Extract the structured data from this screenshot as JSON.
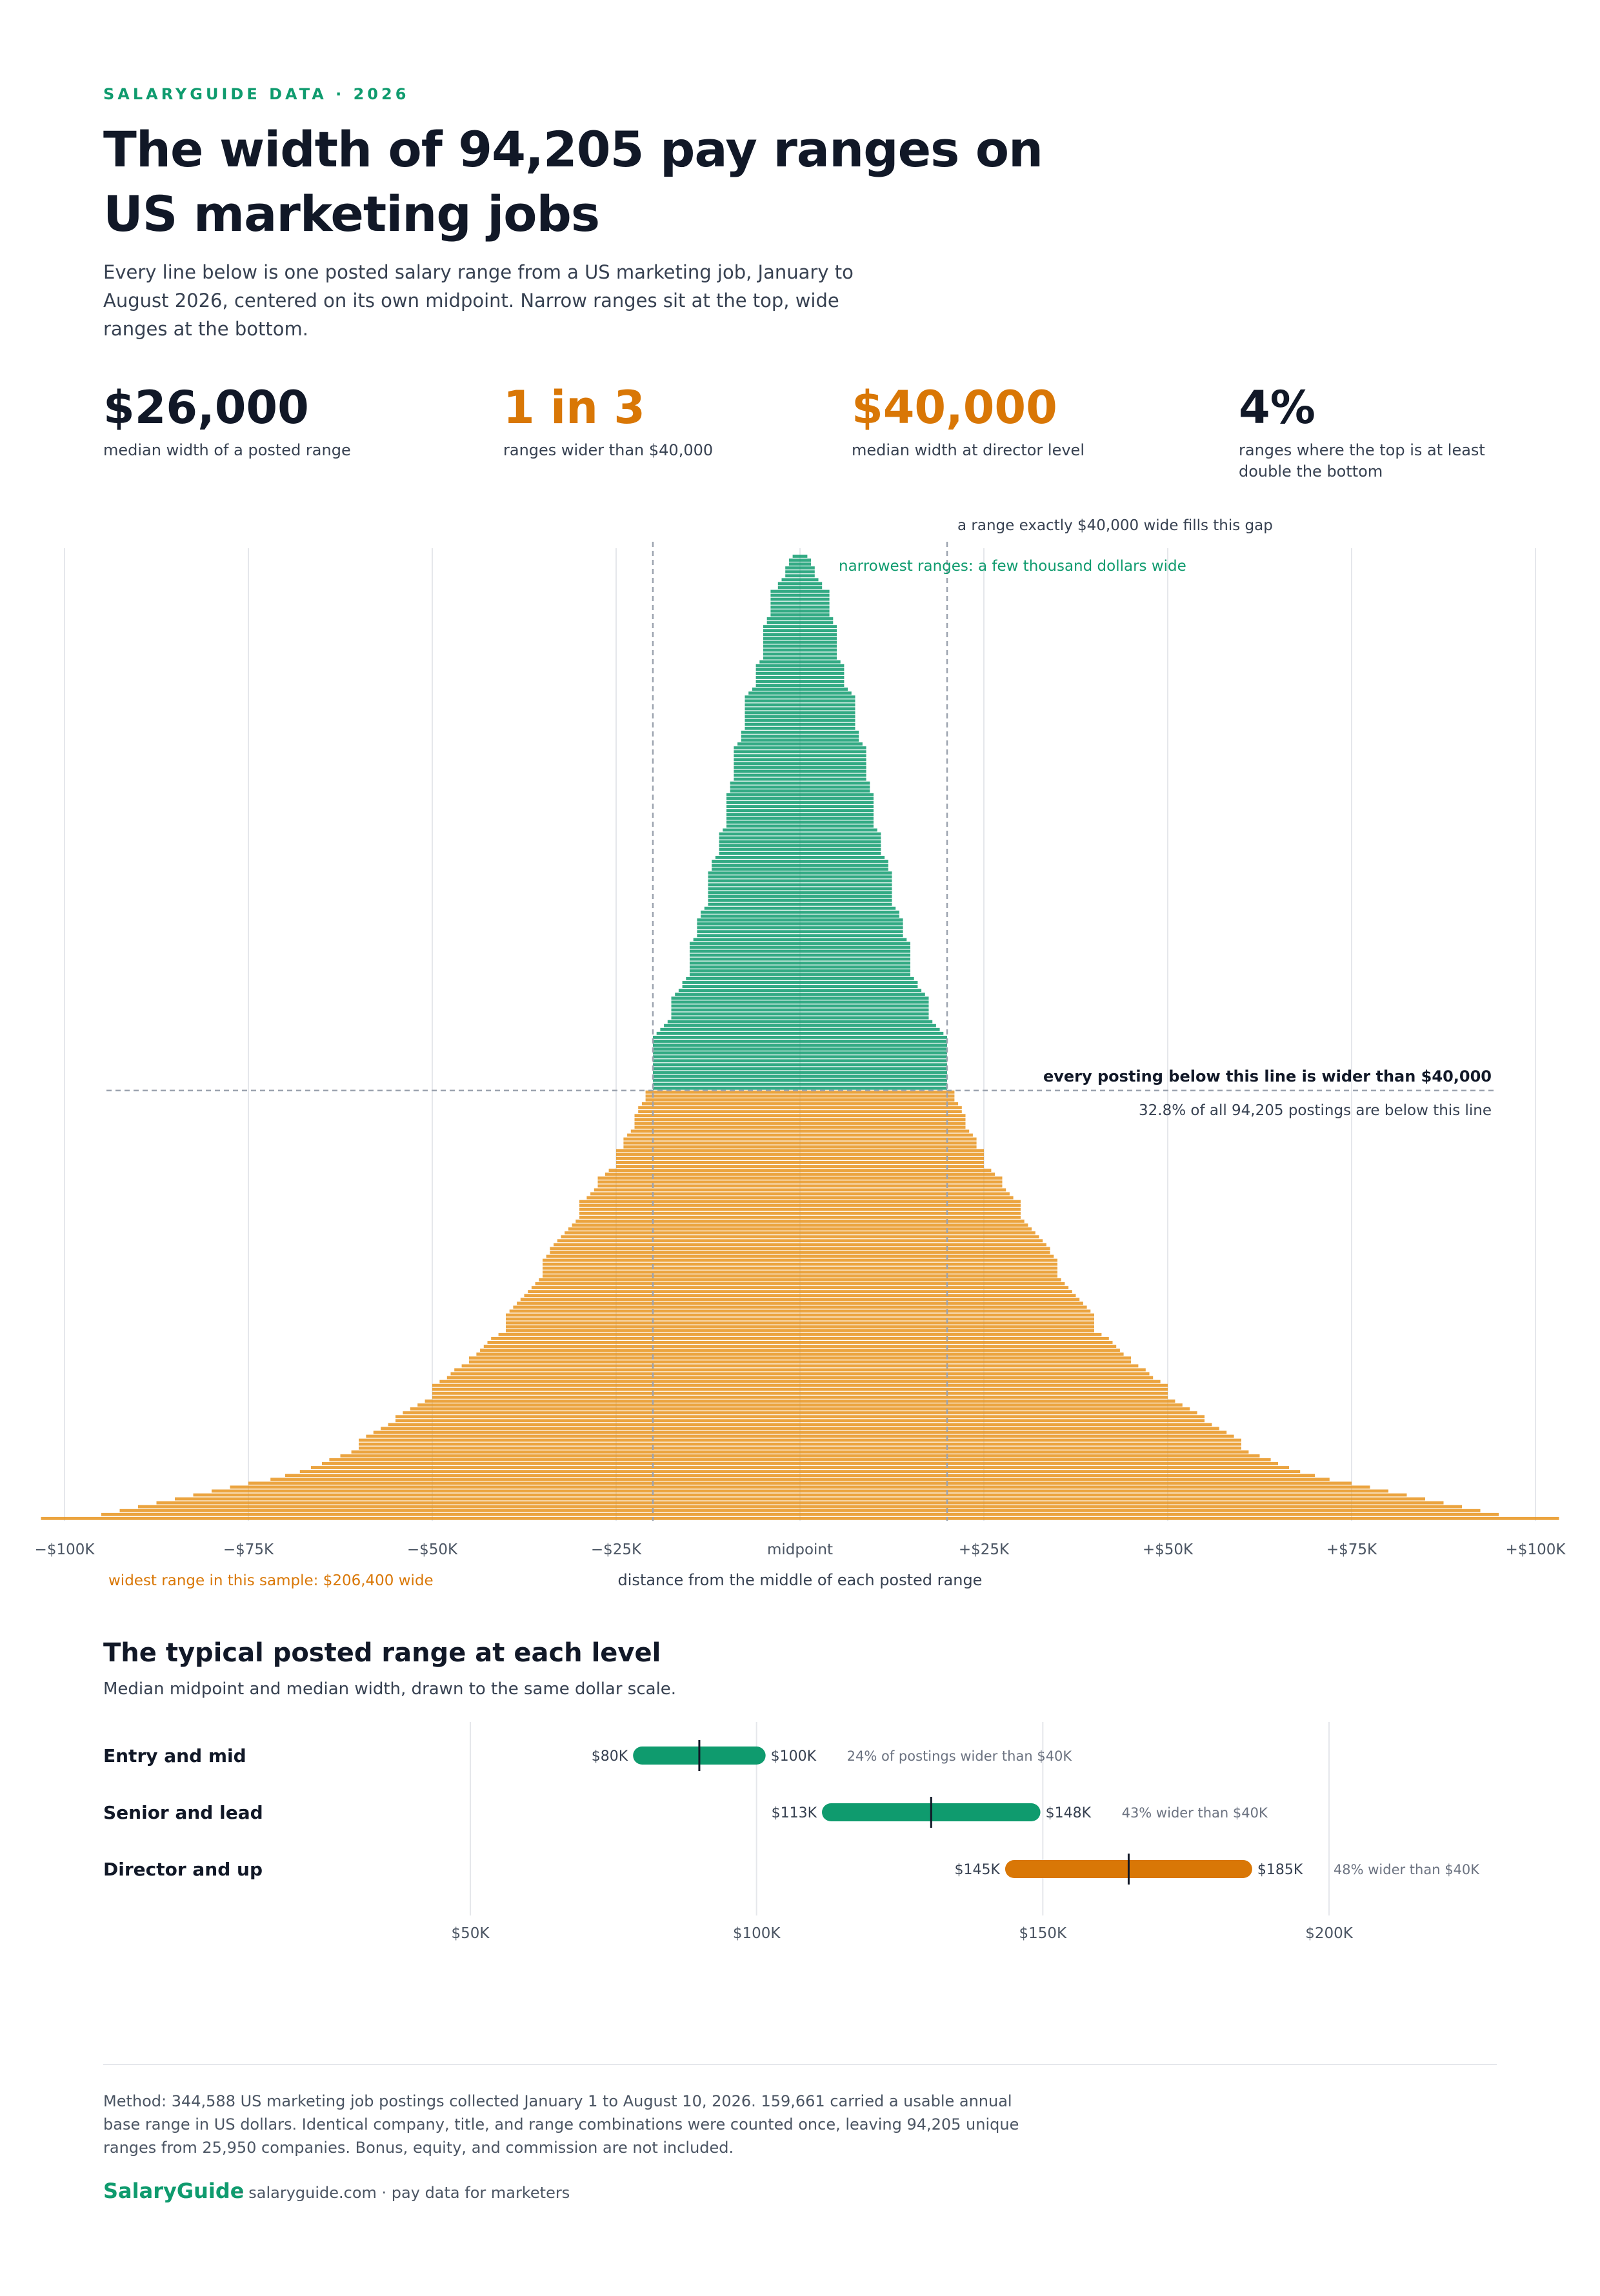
{
  "header": {
    "eyebrow": "SALARYGUIDE DATA · 2026",
    "title": "The width of 94,205 pay ranges on US marketing jobs",
    "subtitle": "Every line below is one posted salary range from a US marketing job, January to August 2026, centered on its own midpoint. Narrow ranges sit at the top, wide ranges at the bottom."
  },
  "stats": [
    {
      "value": "$26,000",
      "label": "median width of a posted range",
      "color": "#111827"
    },
    {
      "value": "1 in 3",
      "label": "ranges wider than $40,000",
      "color": "#d97706"
    },
    {
      "value": "$40,000",
      "label": "median width at director level",
      "color": "#d97706"
    },
    {
      "value": "4%",
      "label": "ranges where the top is at least double the bottom",
      "color": "#111827"
    }
  ],
  "colors": {
    "narrow": "#0f9b6e",
    "wide": "#e8941f",
    "accent": "#d97706",
    "muted": "#6b7280",
    "grid": "#e5e7eb"
  },
  "chart_data": [
    {
      "type": "bar",
      "description_type": "centered range-width stack (each row a group of postings, bar length = range width, centered at 0)",
      "x_unit": "dollars from range midpoint",
      "xlim": [
        -100000,
        100000
      ],
      "x_ticks": [
        -100000,
        -75000,
        -50000,
        -25000,
        0,
        25000,
        50000,
        75000,
        100000
      ],
      "x_tick_labels": [
        "−$100K",
        "−$75K",
        "−$50K",
        "−$25K",
        "midpoint",
        "+$25K",
        "+$50K",
        "+$75K",
        "+$100K"
      ],
      "xlabel": "distance from the middle of each posted range",
      "threshold_width": 40000,
      "threshold_share": 0.328,
      "widths": [
        2000,
        3000,
        3000,
        4000,
        4000,
        4000,
        5000,
        6000,
        6000,
        8000,
        8000,
        8000,
        8000,
        8000,
        8000,
        8000,
        9000,
        9000,
        10000,
        10000,
        10000,
        10000,
        10000,
        10000,
        10000,
        10000,
        10000,
        11000,
        12000,
        12000,
        12000,
        12000,
        12000,
        12000,
        13000,
        14000,
        15000,
        15000,
        15000,
        15000,
        15000,
        15000,
        15000,
        15000,
        15000,
        16000,
        16000,
        16000,
        17000,
        18000,
        18000,
        18000,
        18000,
        18000,
        18000,
        18000,
        18000,
        18000,
        19000,
        19000,
        19000,
        20000,
        20000,
        20000,
        20000,
        20000,
        20000,
        20000,
        20000,
        20000,
        21000,
        22000,
        22000,
        22000,
        22000,
        22000,
        22000,
        23000,
        24000,
        24000,
        24000,
        25000,
        25000,
        25000,
        25000,
        25000,
        25000,
        25000,
        25000,
        25000,
        26000,
        27000,
        27000,
        28000,
        28000,
        28000,
        28000,
        28000,
        29000,
        30000,
        30000,
        30000,
        30000,
        30000,
        30000,
        30000,
        30000,
        30000,
        31000,
        32000,
        32000,
        33000,
        34000,
        35000,
        35000,
        35000,
        35000,
        35000,
        35000,
        36000,
        37000,
        38000,
        39000,
        40000,
        40000,
        40000,
        40000,
        40000,
        40000,
        40000,
        40000,
        40000,
        40000,
        40000,
        40000,
        40000,
        40000,
        42000,
        42000,
        42000,
        43000,
        44000,
        44000,
        45000,
        45000,
        45000,
        45000,
        46000,
        47000,
        48000,
        48000,
        48000,
        50000,
        50000,
        50000,
        50000,
        50000,
        52000,
        53000,
        55000,
        55000,
        55000,
        56000,
        57000,
        58000,
        60000,
        60000,
        60000,
        60000,
        60000,
        61000,
        62000,
        63000,
        64000,
        65000,
        66000,
        67000,
        68000,
        68000,
        69000,
        70000,
        70000,
        70000,
        70000,
        70000,
        71000,
        72000,
        73000,
        74000,
        75000,
        76000,
        77000,
        78000,
        79000,
        80000,
        80000,
        80000,
        80000,
        80000,
        82000,
        84000,
        85000,
        86000,
        87000,
        88000,
        90000,
        90000,
        92000,
        94000,
        95000,
        96000,
        98000,
        100000,
        100000,
        100000,
        100000,
        102000,
        104000,
        106000,
        108000,
        110000,
        110000,
        112000,
        114000,
        116000,
        118000,
        120000,
        120000,
        120000,
        122000,
        125000,
        128000,
        130000,
        133000,
        136000,
        140000,
        144000,
        150000,
        155000,
        160000,
        165000,
        170000,
        175000,
        180000,
        185000,
        190000,
        206400
      ],
      "annotations": {
        "gap": "a range exactly $40,000 wide fills this gap",
        "narrow": "narrowest ranges: a few thousand dollars wide",
        "threshold": "every posting below this line is wider than $40,000",
        "threshold_share": "32.8% of all 94,205 postings are below this line",
        "widest": "widest range in this sample: $206,400 wide"
      }
    },
    {
      "type": "range-bar",
      "title": "The typical posted range at each level",
      "subtitle": "Median midpoint and median width, drawn to the same dollar scale.",
      "x_unit": "USD annual base salary",
      "x_ticks": [
        50000,
        100000,
        150000,
        200000
      ],
      "x_tick_labels": [
        "$50K",
        "$100K",
        "$150K",
        "$200K"
      ],
      "rows": [
        {
          "name": "Entry and mid",
          "low": 80000,
          "high": 100000,
          "mid": 90000,
          "low_label": "$80K",
          "high_label": "$100K",
          "note": "24% of postings wider than $40K",
          "color": "#0f9b6e"
        },
        {
          "name": "Senior and lead",
          "low": 113000,
          "high": 148000,
          "mid": 130500,
          "low_label": "$113K",
          "high_label": "$148K",
          "note": "43% wider than $40K",
          "color": "#0f9b6e"
        },
        {
          "name": "Director and up",
          "low": 145000,
          "high": 185000,
          "mid": 165000,
          "low_label": "$145K",
          "high_label": "$185K",
          "note": "48% wider than $40K",
          "color": "#d97706"
        }
      ]
    }
  ],
  "footer": {
    "method": "Method: 344,588 US marketing job postings collected January 1 to August 10, 2026. 159,661 carried a usable annual base range in US dollars. Identical company, title, and range combinations were counted once, leaving 94,205 unique ranges from 25,950 companies. Bonus, equity, and commission are not included.",
    "brand": "SalaryGuide",
    "tagline": "· salaryguide.com · pay data for marketers"
  }
}
